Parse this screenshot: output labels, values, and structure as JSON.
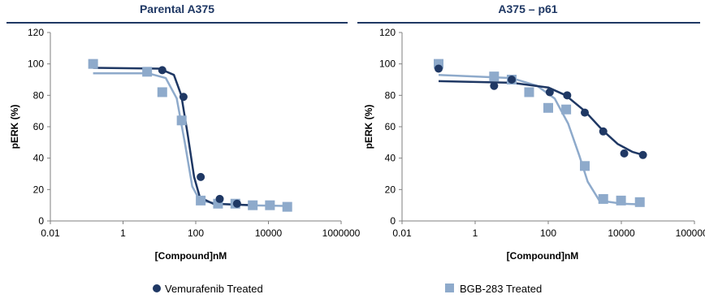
{
  "chart_data": [
    {
      "type": "scatter",
      "title": "Parental A375",
      "xlabel": "[Compound]nM",
      "ylabel": "pERK (%)",
      "xscale": "log",
      "xlim": [
        0.01,
        1000000
      ],
      "ylim": [
        0,
        120
      ],
      "xticks": [
        "0.01",
        "1",
        "100",
        "10000",
        "1000000"
      ],
      "yticks": [
        "0",
        "20",
        "40",
        "60",
        "80",
        "100",
        "120"
      ],
      "grid": false,
      "series": [
        {
          "name": "Vemurafenib Treated",
          "marker": "circle",
          "color": "#1f3864",
          "points": [
            [
              12,
              96
            ],
            [
              46,
              79
            ],
            [
              137,
              28
            ],
            [
              457,
              14
            ],
            [
              1370,
              11
            ]
          ],
          "fit": [
            [
              0.15,
              97.5
            ],
            [
              10,
              97
            ],
            [
              25,
              93
            ],
            [
              40,
              80
            ],
            [
              60,
              55
            ],
            [
              90,
              28
            ],
            [
              130,
              15
            ],
            [
              300,
              11
            ],
            [
              1000,
              10.5
            ],
            [
              5000,
              10
            ]
          ]
        },
        {
          "name": "BGB-283 Treated",
          "marker": "square",
          "color": "#8eaacb",
          "points": [
            [
              0.15,
              100
            ],
            [
              4.6,
              95
            ],
            [
              12,
              82
            ],
            [
              41,
              64
            ],
            [
              137,
              13
            ],
            [
              410,
              11
            ],
            [
              1230,
              11
            ],
            [
              3700,
              10
            ],
            [
              11000,
              10
            ],
            [
              33000,
              9
            ]
          ],
          "fit": [
            [
              0.15,
              94
            ],
            [
              5,
              94
            ],
            [
              15,
              91
            ],
            [
              30,
              78
            ],
            [
              50,
              50
            ],
            [
              80,
              22
            ],
            [
              130,
              13
            ],
            [
              400,
              11
            ],
            [
              3000,
              10
            ],
            [
              40000,
              9.5
            ]
          ]
        }
      ]
    },
    {
      "type": "scatter",
      "title": "A375 – p61",
      "xlabel": "[Compound]nM",
      "ylabel": "pERK (%)",
      "xscale": "log",
      "xlim": [
        0.01,
        1000000
      ],
      "ylim": [
        0,
        120
      ],
      "xticks": [
        "0.01",
        "1",
        "100",
        "10000",
        "1000000"
      ],
      "yticks": [
        "0",
        "20",
        "40",
        "60",
        "80",
        "100",
        "120"
      ],
      "grid": false,
      "series": [
        {
          "name": "Vemurafenib Treated",
          "marker": "circle",
          "color": "#1f3864",
          "points": [
            [
              0.1,
              97
            ],
            [
              3.3,
              86
            ],
            [
              10,
              90
            ],
            [
              110,
              82
            ],
            [
              330,
              80
            ],
            [
              1000,
              69
            ],
            [
              3200,
              57
            ],
            [
              12000,
              43
            ],
            [
              39000,
              42
            ]
          ],
          "fit": [
            [
              0.1,
              89
            ],
            [
              10,
              88
            ],
            [
              100,
              85
            ],
            [
              300,
              80
            ],
            [
              1000,
              70
            ],
            [
              3000,
              58
            ],
            [
              8000,
              49
            ],
            [
              20000,
              44
            ],
            [
              40000,
              42
            ]
          ]
        },
        {
          "name": "BGB-283 Treated",
          "marker": "square",
          "color": "#8eaacb",
          "points": [
            [
              0.1,
              100
            ],
            [
              3.3,
              92
            ],
            [
              10,
              90
            ],
            [
              30,
              82
            ],
            [
              100,
              72
            ],
            [
              310,
              71
            ],
            [
              1000,
              35
            ],
            [
              3200,
              14
            ],
            [
              9800,
              13
            ],
            [
              32000,
              12
            ]
          ],
          "fit": [
            [
              0.1,
              93
            ],
            [
              10,
              91
            ],
            [
              50,
              86
            ],
            [
              150,
              78
            ],
            [
              350,
              62
            ],
            [
              700,
              42
            ],
            [
              1200,
              25
            ],
            [
              2500,
              13
            ],
            [
              10000,
              11
            ],
            [
              40000,
              10.5
            ]
          ]
        }
      ]
    }
  ],
  "legend": {
    "position": "bottom",
    "items": [
      {
        "label": "Vemurafenib Treated",
        "marker": "circle",
        "color": "#1f3864"
      },
      {
        "label": "BGB-283 Treated",
        "marker": "square",
        "color": "#8eaacb"
      }
    ]
  }
}
